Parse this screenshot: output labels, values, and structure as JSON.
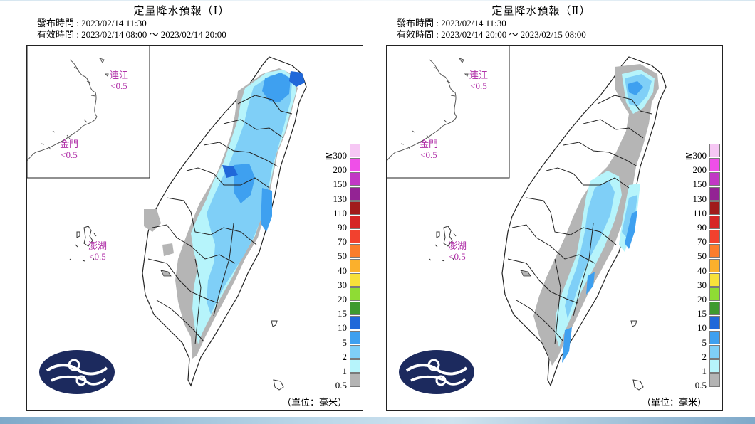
{
  "panels": [
    {
      "title": "定量降水預報（Ⅰ）",
      "issue_time": "發布時間 : 2023/02/14 11:30",
      "valid_time": "有效時間 : 2023/02/14 08:00 ～ 2023/02/14 20:00",
      "matsu": {
        "name": "連江",
        "value": "<0.5"
      },
      "kinmen": {
        "name": "金門",
        "value": "<0.5"
      },
      "penghu": {
        "name": "澎湖",
        "value": "<0.5"
      },
      "unit": "（單位：毫米）"
    },
    {
      "title": "定量降水預報（Ⅱ）",
      "issue_time": "發布時間 : 2023/02/14 11:30",
      "valid_time": "有效時間 : 2023/02/14 20:00 ～ 2023/02/15 08:00",
      "matsu": {
        "name": "連江",
        "value": "<0.5"
      },
      "kinmen": {
        "name": "金門",
        "value": "<0.5"
      },
      "penghu": {
        "name": "澎湖",
        "value": "<0.5"
      },
      "unit": "（單位：毫米）"
    }
  ],
  "legend": {
    "labels": [
      "≧300",
      "200",
      "150",
      "130",
      "110",
      "90",
      "70",
      "50",
      "40",
      "30",
      "20",
      "15",
      "10",
      "5",
      "2",
      "1",
      "0.5"
    ],
    "colors": [
      "#f6c7f4",
      "#ef4fe8",
      "#c237c5",
      "#932394",
      "#a11b1b",
      "#d62626",
      "#f2412e",
      "#fb7d2c",
      "#fbb02c",
      "#f8e13a",
      "#8fdc34",
      "#3e9a2f",
      "#2068d9",
      "#3ea0f0",
      "#7fcff7",
      "#b6f4fb",
      "#b4b4b4"
    ]
  },
  "map_colors": {
    "gray": "#b5b5b5",
    "light_cyan": "#b6f4fb",
    "light_blue": "#7fcff7",
    "mid_blue": "#3ea0f0",
    "dark_blue": "#2068d9",
    "logo_navy": "#1c2a5e"
  }
}
